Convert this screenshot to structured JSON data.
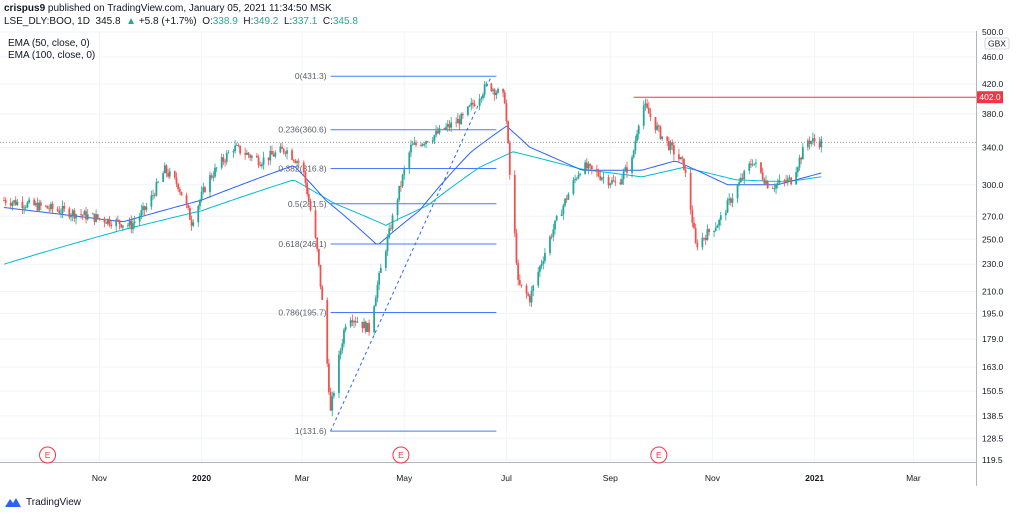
{
  "header": {
    "author": "crispus9",
    "published_text": " published on TradingView.com, January 05, 2021 11:34:50 MSK"
  },
  "symbol": {
    "name": "LSE_DLY:BOO, 1D",
    "last": "345.8",
    "change_arrow": "▲",
    "change": "+5.8 (+1.7%)",
    "o_label": "O:",
    "o": "338.9",
    "h_label": "H:",
    "h": "349.2",
    "l_label": "L:",
    "l": "337.1",
    "c_label": "C:",
    "c": "345.8"
  },
  "legend": {
    "ema50": "EMA (50, close, 0)",
    "ema100": "EMA (100, close, 0)"
  },
  "footer": {
    "brand": "TradingView"
  },
  "colors": {
    "up": "#26a69a",
    "down": "#ef5350",
    "ema50": "#2962ff",
    "ema100": "#00bcd4",
    "fib": "#2962ff",
    "hline": "#f23645",
    "price_tag": "#f23645"
  },
  "chart_data": {
    "type": "candlestick",
    "currency": "GBX",
    "y_scale": "log",
    "ylim": [
      119.5,
      500.0
    ],
    "y_ticks": [
      500.0,
      460.0,
      420.0,
      380.0,
      340.0,
      300.0,
      270.0,
      250.0,
      230.0,
      210.0,
      195.0,
      179.0,
      163.0,
      150.5,
      138.5,
      128.5,
      119.5
    ],
    "x_labels": [
      "Nov",
      "2020",
      "Mar",
      "May",
      "Jul",
      "Sep",
      "Nov",
      "2021",
      "Mar"
    ],
    "x_label_dates": [
      "2019-11-01",
      "2020-01-01",
      "2020-03-01",
      "2020-05-01",
      "2020-07-01",
      "2020-09-01",
      "2020-11-01",
      "2021-01-01",
      "2021-03-01"
    ],
    "x_range": [
      "2019-09-05",
      "2021-04-05"
    ],
    "price_line": 345.8,
    "horizontal_level": {
      "value": 402.0,
      "label": "402.0",
      "start": "2020-09-15"
    },
    "fib_retracement": {
      "start_date": "2020-03-18",
      "end_date": "2020-06-25",
      "levels": [
        {
          "label": "0(431.3)",
          "value": 431.3
        },
        {
          "label": "0.236(360.6)",
          "value": 360.6
        },
        {
          "label": "0.382(316.8)",
          "value": 316.8
        },
        {
          "label": "0.5(281.5)",
          "value": 281.5
        },
        {
          "label": "0.618(246.1)",
          "value": 246.1
        },
        {
          "label": "0.786(195.7)",
          "value": 195.7
        },
        {
          "label": "1(131.6)",
          "value": 131.6
        }
      ]
    },
    "trend_line": {
      "from": {
        "date": "2020-03-18",
        "value": 131.6
      },
      "to": {
        "date": "2020-06-22",
        "value": 431.3
      }
    },
    "event_markers": [
      {
        "label": "E",
        "date": "2019-10-01"
      },
      {
        "label": "E",
        "date": "2020-04-29"
      },
      {
        "label": "E",
        "date": "2020-09-30"
      }
    ],
    "price_path": [
      {
        "date": "2019-09-05",
        "value": 285
      },
      {
        "date": "2019-10-10",
        "value": 275
      },
      {
        "date": "2019-11-20",
        "value": 262
      },
      {
        "date": "2019-11-30",
        "value": 280
      },
      {
        "date": "2019-12-10",
        "value": 315
      },
      {
        "date": "2019-12-18",
        "value": 300
      },
      {
        "date": "2019-12-26",
        "value": 265
      },
      {
        "date": "2020-01-05",
        "value": 305
      },
      {
        "date": "2020-01-20",
        "value": 340
      },
      {
        "date": "2020-02-05",
        "value": 325
      },
      {
        "date": "2020-02-20",
        "value": 338
      },
      {
        "date": "2020-03-01",
        "value": 320
      },
      {
        "date": "2020-03-10",
        "value": 240
      },
      {
        "date": "2020-03-18",
        "value": 140
      },
      {
        "date": "2020-03-28",
        "value": 195
      },
      {
        "date": "2020-04-10",
        "value": 185
      },
      {
        "date": "2020-04-22",
        "value": 255
      },
      {
        "date": "2020-05-05",
        "value": 340
      },
      {
        "date": "2020-05-20",
        "value": 355
      },
      {
        "date": "2020-06-05",
        "value": 375
      },
      {
        "date": "2020-06-20",
        "value": 420
      },
      {
        "date": "2020-06-30",
        "value": 400
      },
      {
        "date": "2020-07-03",
        "value": 310
      },
      {
        "date": "2020-07-08",
        "value": 215
      },
      {
        "date": "2020-07-15",
        "value": 205
      },
      {
        "date": "2020-07-28",
        "value": 255
      },
      {
        "date": "2020-08-15",
        "value": 320
      },
      {
        "date": "2020-09-05",
        "value": 300
      },
      {
        "date": "2020-09-14",
        "value": 325
      },
      {
        "date": "2020-09-20",
        "value": 395
      },
      {
        "date": "2020-10-01",
        "value": 355
      },
      {
        "date": "2020-10-15",
        "value": 320
      },
      {
        "date": "2020-10-22",
        "value": 245
      },
      {
        "date": "2020-11-05",
        "value": 265
      },
      {
        "date": "2020-11-15",
        "value": 295
      },
      {
        "date": "2020-11-25",
        "value": 325
      },
      {
        "date": "2020-12-05",
        "value": 298
      },
      {
        "date": "2020-12-18",
        "value": 305
      },
      {
        "date": "2020-12-28",
        "value": 348
      },
      {
        "date": "2021-01-05",
        "value": 345.8
      }
    ],
    "ema50_path": [
      {
        "date": "2019-09-05",
        "value": 278
      },
      {
        "date": "2019-11-15",
        "value": 265
      },
      {
        "date": "2020-01-01",
        "value": 285
      },
      {
        "date": "2020-02-25",
        "value": 320
      },
      {
        "date": "2020-03-15",
        "value": 285
      },
      {
        "date": "2020-04-15",
        "value": 245
      },
      {
        "date": "2020-05-10",
        "value": 275
      },
      {
        "date": "2020-06-10",
        "value": 335
      },
      {
        "date": "2020-07-01",
        "value": 365
      },
      {
        "date": "2020-07-15",
        "value": 340
      },
      {
        "date": "2020-08-15",
        "value": 315
      },
      {
        "date": "2020-09-20",
        "value": 315
      },
      {
        "date": "2020-10-10",
        "value": 325
      },
      {
        "date": "2020-11-10",
        "value": 300
      },
      {
        "date": "2020-12-10",
        "value": 300
      },
      {
        "date": "2021-01-05",
        "value": 312
      }
    ],
    "ema100_path": [
      {
        "date": "2019-09-05",
        "value": 230
      },
      {
        "date": "2019-11-15",
        "value": 258
      },
      {
        "date": "2020-01-01",
        "value": 275
      },
      {
        "date": "2020-02-25",
        "value": 305
      },
      {
        "date": "2020-03-20",
        "value": 282
      },
      {
        "date": "2020-04-20",
        "value": 262
      },
      {
        "date": "2020-05-15",
        "value": 280
      },
      {
        "date": "2020-06-15",
        "value": 318
      },
      {
        "date": "2020-07-05",
        "value": 335
      },
      {
        "date": "2020-08-15",
        "value": 316
      },
      {
        "date": "2020-09-20",
        "value": 308
      },
      {
        "date": "2020-10-15",
        "value": 318
      },
      {
        "date": "2020-11-15",
        "value": 305
      },
      {
        "date": "2020-12-15",
        "value": 303
      },
      {
        "date": "2021-01-05",
        "value": 308
      }
    ]
  }
}
